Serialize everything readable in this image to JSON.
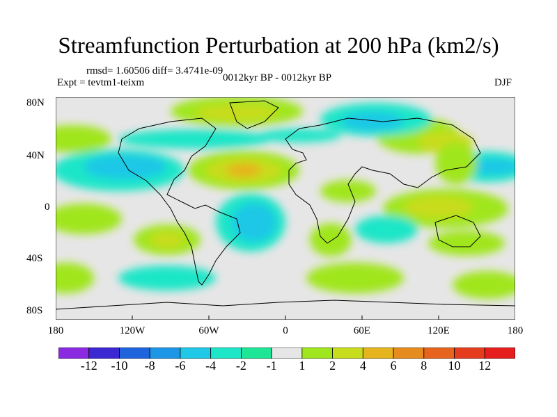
{
  "header": {
    "title": "Streamfunction Perturbation at 200 hPa (km2/s)",
    "stats": "rmsd= 1.60506 diff= 3.4741e-09",
    "expt": "Expt = tevtm1-teixm",
    "period": "0012kyr BP - 0012kyr BP",
    "season": "DJF"
  },
  "axes": {
    "lat_labels": [
      "80N",
      "40N",
      "0",
      "40S",
      "80S"
    ],
    "lon_labels": [
      "180",
      "120W",
      "60W",
      "0",
      "60E",
      "120E",
      "180"
    ]
  },
  "colorbar": {
    "labels": [
      "-12",
      "-10",
      "-8",
      "-6",
      "-4",
      "-2",
      "-1",
      "1",
      "2",
      "4",
      "6",
      "8",
      "10",
      "12"
    ],
    "colors": [
      "#8a2be2",
      "#3c28d2",
      "#1e64dc",
      "#1e96e6",
      "#1ec8e6",
      "#1ee6c8",
      "#1ee696",
      "#e6e6e6",
      "#a0e61e",
      "#c8dc1e",
      "#e6b41e",
      "#e68c1e",
      "#e6641e",
      "#e63c1e",
      "#e61e1e"
    ]
  }
}
